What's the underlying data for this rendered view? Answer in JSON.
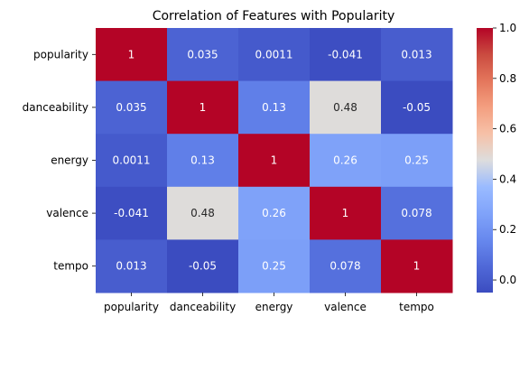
{
  "chart_data": {
    "type": "heatmap",
    "title": "Correlation of Features with Popularity",
    "x_labels": [
      "popularity",
      "danceability",
      "energy",
      "valence",
      "tempo"
    ],
    "y_labels": [
      "popularity",
      "danceability",
      "energy",
      "valence",
      "tempo"
    ],
    "values": [
      [
        1,
        0.035,
        0.0011,
        -0.041,
        0.013
      ],
      [
        0.035,
        1,
        0.13,
        0.48,
        -0.05
      ],
      [
        0.0011,
        0.13,
        1,
        0.26,
        0.25
      ],
      [
        -0.041,
        0.48,
        0.26,
        1,
        0.078
      ],
      [
        0.013,
        -0.05,
        0.25,
        0.078,
        1
      ]
    ],
    "cell_labels": [
      [
        "1",
        "0.035",
        "0.0011",
        "-0.041",
        "0.013"
      ],
      [
        "0.035",
        "1",
        "0.13",
        "0.48",
        "-0.05"
      ],
      [
        "0.0011",
        "0.13",
        "1",
        "0.26",
        "0.25"
      ],
      [
        "-0.041",
        "0.48",
        "0.26",
        "1",
        "0.078"
      ],
      [
        "0.013",
        "-0.05",
        "0.25",
        "0.078",
        "1"
      ]
    ],
    "colormap": "coolwarm",
    "vmin": -0.05,
    "vmax": 1.0,
    "colorbar": {
      "ticks": [
        0.0,
        0.2,
        0.4,
        0.6,
        0.8,
        1.0
      ],
      "tick_labels": [
        "0.0",
        "0.2",
        "0.4",
        "0.6",
        "0.8",
        "1.0"
      ],
      "position": "right"
    },
    "grid": false,
    "legend": "none"
  }
}
